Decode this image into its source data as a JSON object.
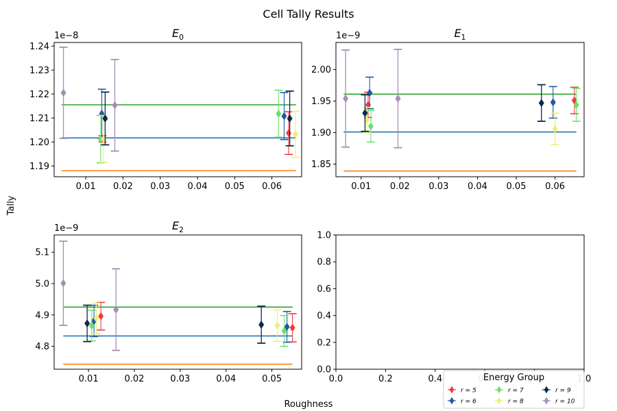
{
  "figure": {
    "title": "Cell Tally Results",
    "xlabel": "Roughness",
    "ylabel": "Tally"
  },
  "colors": {
    "r5": "#f03b3b",
    "r6": "#2158a3",
    "r7": "#6be06b",
    "r8": "#eeee77",
    "r9": "#0c2a4e",
    "r10": "#a88db4",
    "line_green": "#2ca02c",
    "line_blue": "#1f77b4",
    "line_orange": "#ff7f0e"
  },
  "legend": {
    "title": "Energy Group",
    "entries": [
      {
        "label": "r = 5",
        "color": "#f03b3b"
      },
      {
        "label": "r = 6",
        "color": "#2158a3"
      },
      {
        "label": "r = 7",
        "color": "#6be06b"
      },
      {
        "label": "r = 8",
        "color": "#eeee77"
      },
      {
        "label": "r = 9",
        "color": "#0c2a4e"
      },
      {
        "label": "r = 10",
        "color": "#a88db4"
      }
    ]
  },
  "chart_data": [
    {
      "type": "scatter",
      "title": "E",
      "title_sub": "0",
      "offset_text": "1e−8",
      "scale_exp": -8,
      "xlim": [
        0.0015,
        0.068
      ],
      "ylim": [
        1.1855,
        1.2415
      ],
      "xticks": [
        "0.01",
        "0.02",
        "0.03",
        "0.04",
        "0.05",
        "0.06"
      ],
      "yticks": [
        "1.19",
        "1.20",
        "1.21",
        "1.22",
        "1.23",
        "1.24"
      ],
      "hlines": [
        {
          "y": 1.2155,
          "x_range": [
            0.0035,
            0.0665
          ],
          "color": "#2ca02c"
        },
        {
          "y": 1.2017,
          "x_range": [
            0.0035,
            0.0665
          ],
          "color": "#1f77b4"
        },
        {
          "y": 1.188,
          "x_range": [
            0.0035,
            0.0665
          ],
          "color": "#ff7f0e"
        }
      ],
      "series": [
        {
          "name": "r = 5",
          "color": "#f03b3b",
          "x": [
            0.0145,
            0.0645
          ],
          "y": [
            1.2013,
            1.2037
          ],
          "err": [
            0.0013,
            0.0089
          ]
        },
        {
          "name": "r = 6",
          "color": "#2158a3",
          "x": [
            0.0143,
            0.0633
          ],
          "y": [
            1.2118,
            1.2108
          ],
          "err": [
            0.0102,
            0.0098
          ]
        },
        {
          "name": "r = 7",
          "color": "#6be06b",
          "x": [
            0.014,
            0.0618
          ],
          "y": [
            1.2012,
            1.2118
          ],
          "err": [
            0.0099,
            0.0098
          ]
        },
        {
          "name": "r = 8",
          "color": "#eeee77",
          "x": [
            0.0148,
            0.0663
          ],
          "y": [
            1.2012,
            1.2032
          ],
          "err": [
            0.0097,
            0.0096
          ]
        },
        {
          "name": "r = 9",
          "color": "#0c2a4e",
          "x": [
            0.0152,
            0.0648
          ],
          "y": [
            1.2098,
            1.2098
          ],
          "err": [
            0.011,
            0.0114
          ]
        },
        {
          "name": "r = 10",
          "color": "#a88db4",
          "x": [
            0.004,
            0.0178
          ],
          "y": [
            1.2205,
            1.2153
          ],
          "err": [
            0.019,
            0.0191
          ]
        }
      ]
    },
    {
      "type": "scatter",
      "title": "E",
      "title_sub": "1",
      "offset_text": "1e−9",
      "scale_exp": -9,
      "xlim": [
        0.0035,
        0.0675
      ],
      "ylim": [
        1.83,
        2.043
      ],
      "xticks": [
        "0.01",
        "0.02",
        "0.03",
        "0.04",
        "0.05",
        "0.06"
      ],
      "yticks": [
        "1.85",
        "1.90",
        "1.95",
        "2.00"
      ],
      "hlines": [
        {
          "y": 1.961,
          "x_range": [
            0.0055,
            0.0655
          ],
          "color": "#2ca02c"
        },
        {
          "y": 1.901,
          "x_range": [
            0.0055,
            0.0655
          ],
          "color": "#1f77b4"
        },
        {
          "y": 1.839,
          "x_range": [
            0.0055,
            0.0655
          ],
          "color": "#ff7f0e"
        }
      ],
      "series": [
        {
          "name": "r = 5",
          "color": "#f03b3b",
          "x": [
            0.0118,
            0.065
          ],
          "y": [
            1.944,
            1.951
          ],
          "err": [
            0.02,
            0.021
          ]
        },
        {
          "name": "r = 6",
          "color": "#2158a3",
          "x": [
            0.0122,
            0.0595
          ],
          "y": [
            1.963,
            1.948
          ],
          "err": [
            0.025,
            0.025
          ]
        },
        {
          "name": "r = 7",
          "color": "#6be06b",
          "x": [
            0.0125,
            0.0655
          ],
          "y": [
            1.91,
            1.944
          ],
          "err": [
            0.025,
            0.026
          ]
        },
        {
          "name": "r = 8",
          "color": "#eeee77",
          "x": [
            0.0115,
            0.06
          ],
          "y": [
            1.92,
            1.906
          ],
          "err": [
            0.02,
            0.025
          ]
        },
        {
          "name": "r = 9",
          "color": "#0c2a4e",
          "x": [
            0.011,
            0.0565
          ],
          "y": [
            1.931,
            1.947
          ],
          "err": [
            0.029,
            0.029
          ]
        },
        {
          "name": "r = 10",
          "color": "#a88db4",
          "x": [
            0.006,
            0.0195
          ],
          "y": [
            1.954,
            1.954
          ],
          "err": [
            0.077,
            0.078
          ]
        }
      ]
    },
    {
      "type": "scatter",
      "title": "E",
      "title_sub": "2",
      "offset_text": "1e−9",
      "scale_exp": -9,
      "xlim": [
        0.0025,
        0.0565
      ],
      "ylim": [
        4.727,
        5.155
      ],
      "xticks": [
        "0.01",
        "0.02",
        "0.03",
        "0.04",
        "0.05"
      ],
      "yticks": [
        "4.8",
        "4.9",
        "5.0",
        "5.1"
      ],
      "hlines": [
        {
          "y": 4.925,
          "x_range": [
            0.0045,
            0.0545
          ],
          "color": "#2ca02c"
        },
        {
          "y": 4.833,
          "x_range": [
            0.0045,
            0.0545
          ],
          "color": "#1f77b4"
        },
        {
          "y": 4.743,
          "x_range": [
            0.0045,
            0.0545
          ],
          "color": "#ff7f0e"
        }
      ],
      "series": [
        {
          "name": "r = 5",
          "color": "#f03b3b",
          "x": [
            0.0127,
            0.0545
          ],
          "y": [
            4.896,
            4.859
          ],
          "err": [
            0.044,
            0.045
          ]
        },
        {
          "name": "r = 6",
          "color": "#2158a3",
          "x": [
            0.0112,
            0.0533
          ],
          "y": [
            4.881,
            4.862
          ],
          "err": [
            0.05,
            0.049
          ]
        },
        {
          "name": "r = 7",
          "color": "#6be06b",
          "x": [
            0.0107,
            0.0527
          ],
          "y": [
            4.866,
            4.849
          ],
          "err": [
            0.049,
            0.049
          ]
        },
        {
          "name": "r = 8",
          "color": "#eeee77",
          "x": [
            0.0117,
            0.0512
          ],
          "y": [
            4.889,
            4.866
          ],
          "err": [
            0.049,
            0.05
          ]
        },
        {
          "name": "r = 9",
          "color": "#0c2a4e",
          "x": [
            0.0097,
            0.0477
          ],
          "y": [
            4.873,
            4.869
          ],
          "err": [
            0.058,
            0.059
          ]
        },
        {
          "name": "r = 10",
          "color": "#a88db4",
          "x": [
            0.0045,
            0.016
          ],
          "y": [
            5.001,
            4.917
          ],
          "err": [
            0.134,
            0.13
          ]
        }
      ]
    },
    {
      "type": "scatter",
      "title": "",
      "xlim": [
        0,
        1
      ],
      "ylim": [
        0,
        1
      ],
      "xticks": [
        "0.0",
        "0.2",
        "0.4",
        "0.6",
        "0.8",
        "1.0"
      ],
      "yticks": [
        "0.0",
        "0.2",
        "0.4",
        "0.6",
        "0.8",
        "1.0"
      ],
      "series": []
    }
  ]
}
